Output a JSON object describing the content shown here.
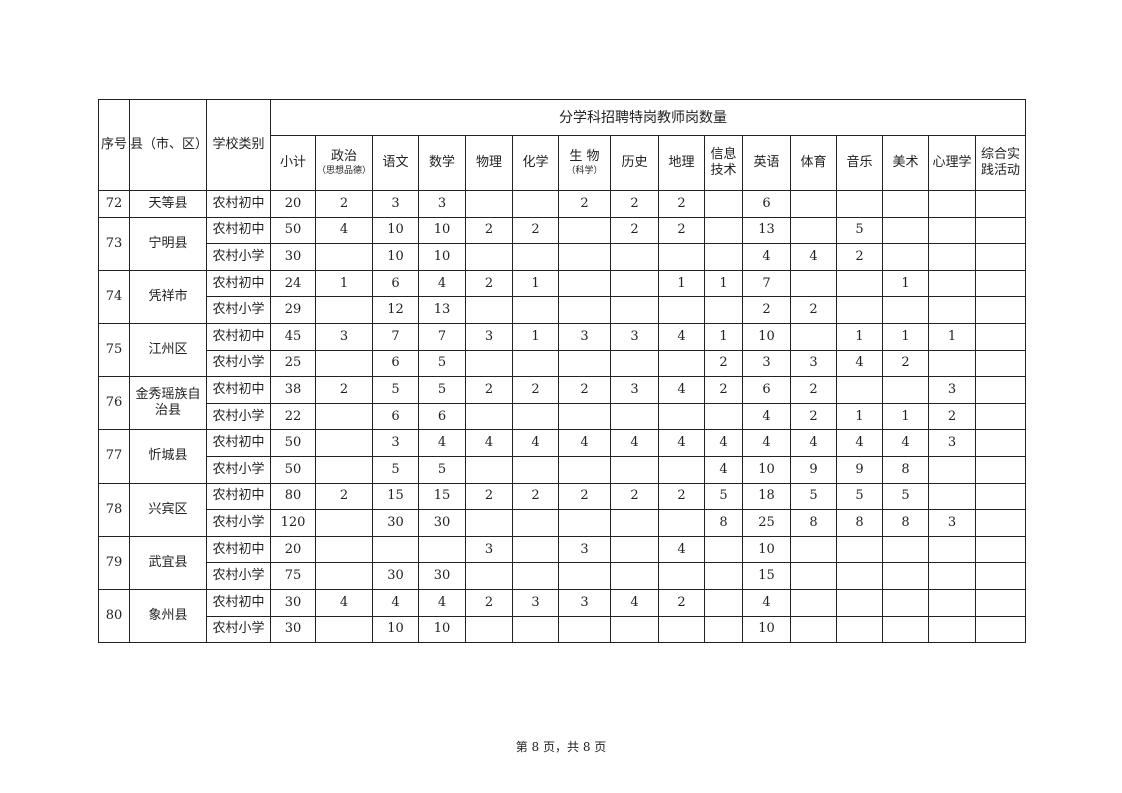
{
  "header": {
    "seq": "序号",
    "county": "县（市、区）",
    "school_type": "学校类别",
    "group_title": "分学科招聘特岗教师岗数量",
    "columns": [
      {
        "main": "小计",
        "sub": ""
      },
      {
        "main": "政治",
        "sub": "（思想品德）"
      },
      {
        "main": "语文",
        "sub": ""
      },
      {
        "main": "数学",
        "sub": ""
      },
      {
        "main": "物理",
        "sub": ""
      },
      {
        "main": "化学",
        "sub": ""
      },
      {
        "main": "生 物",
        "sub": "（科学）"
      },
      {
        "main": "历史",
        "sub": ""
      },
      {
        "main": "地理",
        "sub": ""
      },
      {
        "main": "信息技术",
        "sub": ""
      },
      {
        "main": "英语",
        "sub": ""
      },
      {
        "main": "体育",
        "sub": ""
      },
      {
        "main": "音乐",
        "sub": ""
      },
      {
        "main": "美术",
        "sub": ""
      },
      {
        "main": "心理学",
        "sub": ""
      },
      {
        "main": "综合实践活动",
        "sub": ""
      }
    ]
  },
  "groups": [
    {
      "seq": "72",
      "county": "天等县",
      "rows": [
        {
          "type": "农村初中",
          "values": [
            "20",
            "2",
            "3",
            "3",
            "",
            "",
            "2",
            "2",
            "2",
            "",
            "6",
            "",
            "",
            "",
            "",
            ""
          ]
        }
      ]
    },
    {
      "seq": "73",
      "county": "宁明县",
      "rows": [
        {
          "type": "农村初中",
          "values": [
            "50",
            "4",
            "10",
            "10",
            "2",
            "2",
            "",
            "2",
            "2",
            "",
            "13",
            "",
            "5",
            "",
            "",
            ""
          ]
        },
        {
          "type": "农村小学",
          "values": [
            "30",
            "",
            "10",
            "10",
            "",
            "",
            "",
            "",
            "",
            "",
            "4",
            "4",
            "2",
            "",
            "",
            ""
          ]
        }
      ]
    },
    {
      "seq": "74",
      "county": "凭祥市",
      "rows": [
        {
          "type": "农村初中",
          "values": [
            "24",
            "1",
            "6",
            "4",
            "2",
            "1",
            "",
            "",
            "1",
            "1",
            "7",
            "",
            "",
            "1",
            "",
            ""
          ]
        },
        {
          "type": "农村小学",
          "values": [
            "29",
            "",
            "12",
            "13",
            "",
            "",
            "",
            "",
            "",
            "",
            "2",
            "2",
            "",
            "",
            "",
            ""
          ]
        }
      ]
    },
    {
      "seq": "75",
      "county": "江州区",
      "rows": [
        {
          "type": "农村初中",
          "values": [
            "45",
            "3",
            "7",
            "7",
            "3",
            "1",
            "3",
            "3",
            "4",
            "1",
            "10",
            "",
            "1",
            "1",
            "1",
            ""
          ]
        },
        {
          "type": "农村小学",
          "values": [
            "25",
            "",
            "6",
            "5",
            "",
            "",
            "",
            "",
            "",
            "2",
            "3",
            "3",
            "4",
            "2",
            "",
            ""
          ]
        }
      ]
    },
    {
      "seq": "76",
      "county": "金秀瑶族自治县",
      "rows": [
        {
          "type": "农村初中",
          "values": [
            "38",
            "2",
            "5",
            "5",
            "2",
            "2",
            "2",
            "3",
            "4",
            "2",
            "6",
            "2",
            "",
            "",
            "3",
            ""
          ]
        },
        {
          "type": "农村小学",
          "values": [
            "22",
            "",
            "6",
            "6",
            "",
            "",
            "",
            "",
            "",
            "",
            "4",
            "2",
            "1",
            "1",
            "2",
            ""
          ]
        }
      ]
    },
    {
      "seq": "77",
      "county": "忻城县",
      "rows": [
        {
          "type": "农村初中",
          "values": [
            "50",
            "",
            "3",
            "4",
            "4",
            "4",
            "4",
            "4",
            "4",
            "4",
            "4",
            "4",
            "4",
            "4",
            "3",
            ""
          ]
        },
        {
          "type": "农村小学",
          "values": [
            "50",
            "",
            "5",
            "5",
            "",
            "",
            "",
            "",
            "",
            "4",
            "10",
            "9",
            "9",
            "8",
            "",
            ""
          ]
        }
      ]
    },
    {
      "seq": "78",
      "county": "兴宾区",
      "rows": [
        {
          "type": "农村初中",
          "values": [
            "80",
            "2",
            "15",
            "15",
            "2",
            "2",
            "2",
            "2",
            "2",
            "5",
            "18",
            "5",
            "5",
            "5",
            "",
            ""
          ]
        },
        {
          "type": "农村小学",
          "values": [
            "120",
            "",
            "30",
            "30",
            "",
            "",
            "",
            "",
            "",
            "8",
            "25",
            "8",
            "8",
            "8",
            "3",
            ""
          ]
        }
      ]
    },
    {
      "seq": "79",
      "county": "武宜县",
      "rows": [
        {
          "type": "农村初中",
          "values": [
            "20",
            "",
            "",
            "",
            "3",
            "",
            "3",
            "",
            "4",
            "",
            "10",
            "",
            "",
            "",
            "",
            ""
          ]
        },
        {
          "type": "农村小学",
          "values": [
            "75",
            "",
            "30",
            "30",
            "",
            "",
            "",
            "",
            "",
            "",
            "15",
            "",
            "",
            "",
            "",
            ""
          ]
        }
      ]
    },
    {
      "seq": "80",
      "county": "象州县",
      "rows": [
        {
          "type": "农村初中",
          "values": [
            "30",
            "4",
            "4",
            "4",
            "2",
            "3",
            "3",
            "4",
            "2",
            "",
            "4",
            "",
            "",
            "",
            "",
            ""
          ]
        },
        {
          "type": "农村小学",
          "values": [
            "30",
            "",
            "10",
            "10",
            "",
            "",
            "",
            "",
            "",
            "",
            "10",
            "",
            "",
            "",
            "",
            ""
          ]
        }
      ]
    }
  ],
  "footer": "第 8 页，共 8 页"
}
